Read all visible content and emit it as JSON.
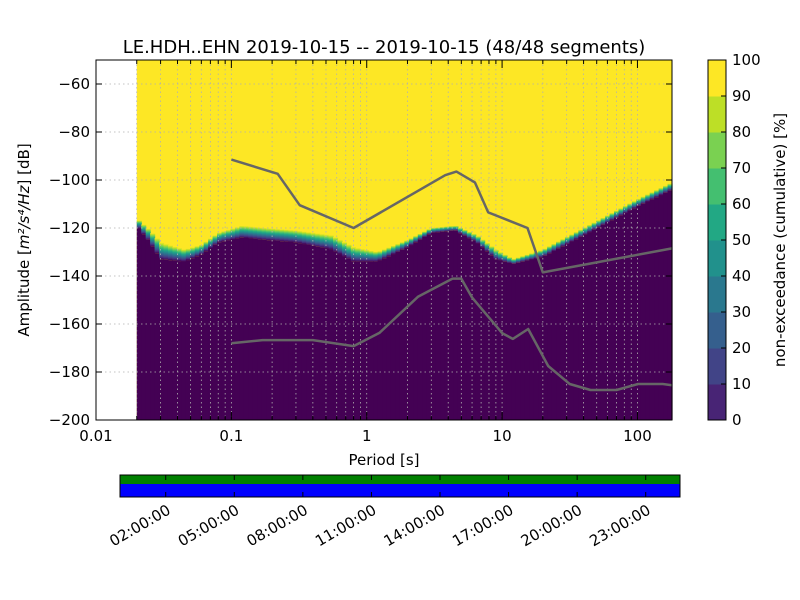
{
  "chart_data": {
    "type": "heatmap",
    "title": "LE.HDH..EHN   2019-10-15 -- 2019-10-15  (48/48 segments)",
    "xlabel": "Period [s]",
    "ylabel_prefix": "Amplitude [",
    "ylabel_math": "m²/s⁴/Hz",
    "ylabel_suffix": "] [dB]",
    "x_scale": "log",
    "xlim": [
      0.01,
      180
    ],
    "ylim": [
      -200,
      -50
    ],
    "x_ticks": [
      0.01,
      0.1,
      1,
      10,
      100
    ],
    "x_tick_labels": [
      "0.01",
      "0.1",
      "1",
      "10",
      "100"
    ],
    "y_ticks": [
      -60,
      -80,
      -100,
      -120,
      -140,
      -160,
      -180,
      -200
    ],
    "y_tick_labels": [
      "−60",
      "−80",
      "−100",
      "−120",
      "−140",
      "−160",
      "−180",
      "−200"
    ],
    "data_min_period": 0.02,
    "lower_transition_boundary": [
      [
        0.02,
        -119
      ],
      [
        0.025,
        -126
      ],
      [
        0.03,
        -133
      ],
      [
        0.045,
        -134
      ],
      [
        0.06,
        -131
      ],
      [
        0.08,
        -126
      ],
      [
        0.12,
        -124
      ],
      [
        0.18,
        -125
      ],
      [
        0.3,
        -126
      ],
      [
        0.55,
        -129
      ],
      [
        0.8,
        -134
      ],
      [
        1.2,
        -134
      ],
      [
        2.0,
        -128
      ],
      [
        3.0,
        -122
      ],
      [
        4.5,
        -121
      ],
      [
        6.5,
        -126
      ],
      [
        9.0,
        -133
      ],
      [
        12.0,
        -135
      ],
      [
        20.0,
        -132
      ],
      [
        40.0,
        -123
      ],
      [
        100.0,
        -111
      ],
      [
        180.0,
        -104
      ]
    ],
    "upper_transition_boundary": [
      [
        0.02,
        -116
      ],
      [
        0.025,
        -121
      ],
      [
        0.03,
        -126
      ],
      [
        0.045,
        -129
      ],
      [
        0.06,
        -127
      ],
      [
        0.08,
        -122
      ],
      [
        0.12,
        -119
      ],
      [
        0.18,
        -120
      ],
      [
        0.3,
        -121
      ],
      [
        0.55,
        -123
      ],
      [
        0.8,
        -128
      ],
      [
        1.2,
        -130
      ],
      [
        2.0,
        -125
      ],
      [
        3.0,
        -120
      ],
      [
        4.5,
        -119
      ],
      [
        6.5,
        -123
      ],
      [
        9.0,
        -129
      ],
      [
        12.0,
        -133
      ],
      [
        20.0,
        -129
      ],
      [
        40.0,
        -120
      ],
      [
        100.0,
        -108
      ],
      [
        180.0,
        -101
      ]
    ],
    "nhnm": [
      [
        0.1,
        -91.5
      ],
      [
        0.22,
        -97.4
      ],
      [
        0.32,
        -110.5
      ],
      [
        0.8,
        -120
      ],
      [
        3.8,
        -98
      ],
      [
        4.6,
        -96.5
      ],
      [
        6.3,
        -101
      ],
      [
        7.9,
        -113.5
      ],
      [
        15.4,
        -120
      ],
      [
        20,
        -138.5
      ],
      [
        180,
        -128.5
      ]
    ],
    "nlnm": [
      [
        0.1,
        -168
      ],
      [
        0.17,
        -166.7
      ],
      [
        0.4,
        -166.7
      ],
      [
        0.8,
        -169.2
      ],
      [
        1.24,
        -163.7
      ],
      [
        2.4,
        -148.6
      ],
      [
        4.3,
        -141.1
      ],
      [
        5,
        -141.1
      ],
      [
        6,
        -149
      ],
      [
        10,
        -163.8
      ],
      [
        12,
        -166.2
      ],
      [
        15.6,
        -162.1
      ],
      [
        21.9,
        -177.5
      ],
      [
        31.6,
        -185
      ],
      [
        45,
        -187.5
      ],
      [
        70,
        -187.5
      ],
      [
        101,
        -185
      ],
      [
        154,
        -185
      ],
      [
        180,
        -185.5
      ]
    ],
    "colorbar": {
      "label": "non-exceedance (cumulative) [%]",
      "ticks": [
        0,
        10,
        20,
        30,
        40,
        50,
        60,
        70,
        80,
        90,
        100
      ],
      "tick_labels": [
        "0",
        "10",
        "20",
        "30",
        "40",
        "50",
        "60",
        "70",
        "80",
        "90",
        "100"
      ],
      "colormap": [
        "#440154",
        "#482475",
        "#414487",
        "#355f8d",
        "#2a788e",
        "#21918c",
        "#22a884",
        "#44bf70",
        "#7ad151",
        "#bddf26",
        "#fde725"
      ]
    },
    "coverage": {
      "time_tick_labels": [
        "02:00:00",
        "05:00:00",
        "08:00:00",
        "11:00:00",
        "14:00:00",
        "17:00:00",
        "20:00:00",
        "23:00:00"
      ],
      "time_tick_hours": [
        2,
        5,
        8,
        11,
        14,
        17,
        20,
        23
      ],
      "xlim_hours": [
        0,
        24.5
      ],
      "bars": [
        {
          "name": "data",
          "color": "#008000"
        },
        {
          "name": "psd",
          "color": "#0000ff"
        }
      ]
    },
    "colors": {
      "noise_model_line": "#666666",
      "high": "#fde725",
      "low": "#440154"
    }
  }
}
